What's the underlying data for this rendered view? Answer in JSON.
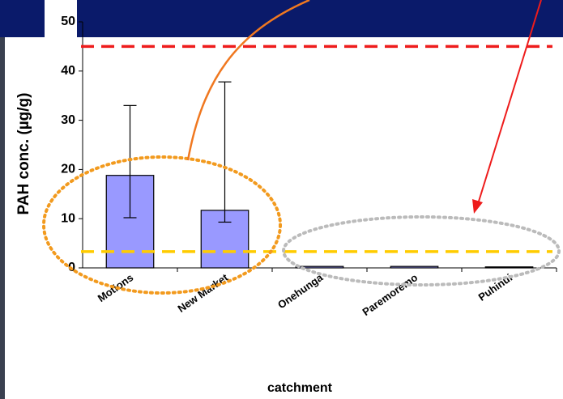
{
  "chart_data": {
    "type": "bar",
    "y_label": "PAH conc. (µg/g)",
    "x_label": "catchment",
    "categories": [
      "Motions",
      "New Market",
      "Onehunga",
      "Paremoremo",
      "Puhinui"
    ],
    "values": [
      18.8,
      11.7,
      0.3,
      0.3,
      0.2
    ],
    "error_lower": [
      10.2,
      9.3,
      null,
      null,
      null
    ],
    "error_upper": [
      33,
      37.8,
      null,
      null,
      null
    ],
    "color": "#9999ff",
    "ylim": [
      0,
      50
    ],
    "yticks": [
      0,
      10,
      20,
      30,
      40,
      50
    ],
    "reference_lines": [
      {
        "value": 45,
        "color": "#ee1c1c"
      },
      {
        "value": 3.3,
        "color": "#ffcc00"
      }
    ]
  }
}
